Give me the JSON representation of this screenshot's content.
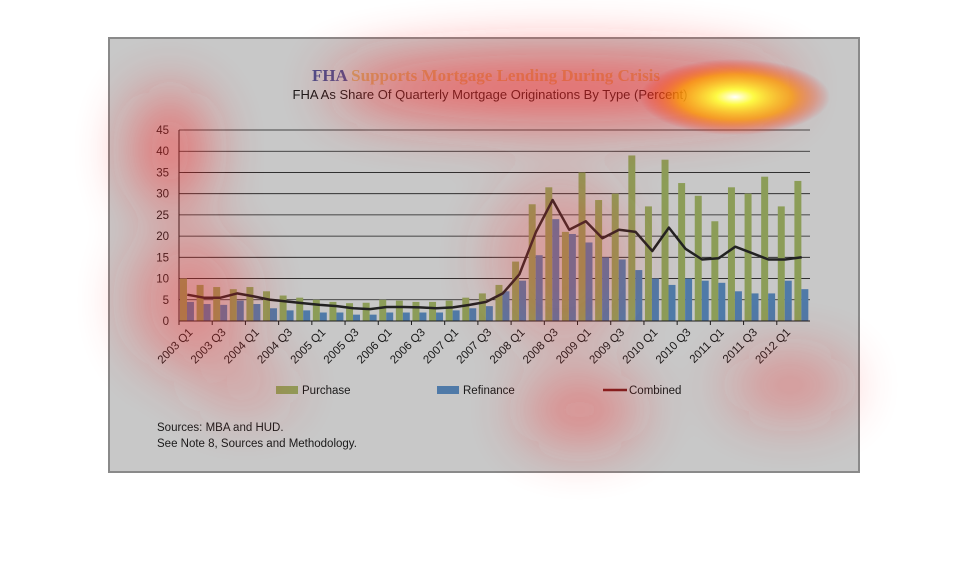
{
  "chart_data": {
    "type": "bar",
    "title": "FHA Supports Mortgage Lending During Crisis",
    "title_accent_word": "FHA",
    "subtitle": "FHA As Share Of Quarterly Mortgage Originations By Type (Percent)",
    "xlabel": "",
    "ylabel": "",
    "ylim": [
      0,
      45
    ],
    "yticks": [
      0,
      5,
      10,
      15,
      20,
      25,
      30,
      35,
      40,
      45
    ],
    "grid": true,
    "legend_position": "bottom",
    "categories": [
      "2003 Q1",
      "2003 Q2",
      "2003 Q3",
      "2003 Q4",
      "2004 Q1",
      "2004 Q2",
      "2004 Q3",
      "2004 Q4",
      "2005 Q1",
      "2005 Q2",
      "2005 Q3",
      "2005 Q4",
      "2006 Q1",
      "2006 Q2",
      "2006 Q3",
      "2006 Q4",
      "2007 Q1",
      "2007 Q2",
      "2007 Q3",
      "2007 Q4",
      "2008 Q1",
      "2008 Q2",
      "2008 Q3",
      "2008 Q4",
      "2009 Q1",
      "2009 Q2",
      "2009 Q3",
      "2009 Q4",
      "2010 Q1",
      "2010 Q2",
      "2010 Q3",
      "2010 Q4",
      "2011 Q1",
      "2011 Q2",
      "2011 Q3",
      "2011 Q4",
      "2012 Q1",
      "2012 Q2"
    ],
    "x_tick_labels": [
      "2003 Q1",
      "2003 Q3",
      "2004 Q1",
      "2004 Q3",
      "2005 Q1",
      "2005 Q3",
      "2006 Q1",
      "2006 Q3",
      "2007 Q1",
      "2007 Q3",
      "2008 Q1",
      "2008 Q3",
      "2009 Q1",
      "2009 Q3",
      "2010 Q1",
      "2010 Q3",
      "2011 Q1",
      "2011 Q3",
      "2012 Q1"
    ],
    "series": [
      {
        "name": "Purchase",
        "kind": "bar",
        "color": "#8c9d58",
        "values": [
          10,
          8.5,
          8,
          7.5,
          8,
          7,
          6,
          5.5,
          5,
          4.5,
          4.2,
          4.3,
          5,
          4.8,
          4.5,
          4.5,
          4.8,
          5.5,
          6.5,
          8.5,
          14,
          27.5,
          31.5,
          21,
          35,
          28.5,
          30,
          39,
          27,
          38,
          32.5,
          29.5,
          23.5,
          31.5,
          30,
          34,
          27,
          33
        ]
      },
      {
        "name": "Refinance",
        "kind": "bar",
        "color": "#4f7aa8",
        "values": [
          4.5,
          4,
          3.8,
          4.8,
          4,
          3,
          2.5,
          2.5,
          2,
          2,
          1.5,
          1.5,
          2,
          2,
          2,
          2,
          2.5,
          3,
          3.5,
          7,
          9.5,
          15.5,
          24,
          20.5,
          18.5,
          15,
          14.5,
          12,
          10,
          8.5,
          10,
          9.5,
          9,
          7,
          6.5,
          6.5,
          9.5,
          7.5
        ]
      },
      {
        "name": "Combined",
        "kind": "line",
        "color": "#222222",
        "legend_color": "#6b1d1d",
        "values": [
          6.2,
          5.5,
          5.5,
          6.5,
          5.8,
          5,
          4.6,
          4.2,
          3.8,
          3.5,
          3,
          2.8,
          3.3,
          3.3,
          3.2,
          3,
          3.2,
          3.8,
          4.5,
          6.5,
          11,
          21,
          28.5,
          21.5,
          23.5,
          19.5,
          21.5,
          21,
          16.5,
          22,
          17,
          14.5,
          14.8,
          17.5,
          16,
          14.5,
          14.5,
          15
        ]
      }
    ],
    "legend": [
      "Purchase",
      "Refinance",
      "Combined"
    ],
    "colors": {
      "frame_bg": "#c8c8c8",
      "plot_bg": "#c8c8c8",
      "grid": "#1a1a1a",
      "title_accent": "#4a4f8c",
      "title_rest": "#c8a86b"
    }
  },
  "notes": {
    "line1": "Sources:  MBA and HUD.",
    "line2": "See Note 8, Sources and Methodology."
  }
}
